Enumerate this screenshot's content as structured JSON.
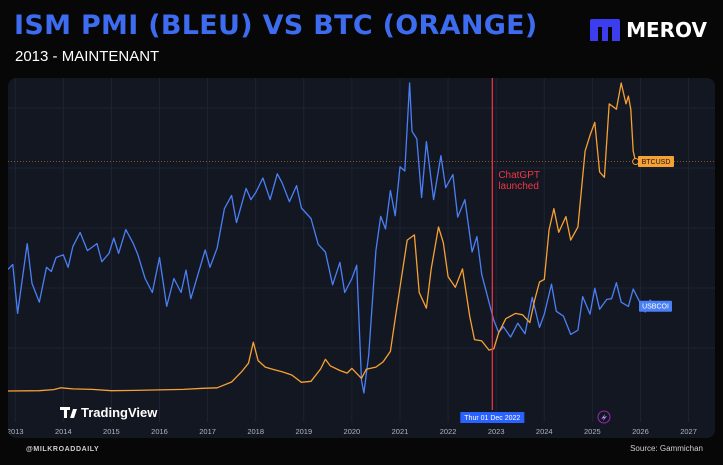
{
  "header": {
    "title": "ISM PMI (BLEU) VS BTC (ORANGE)",
    "subtitle": "2013 - MAINTENANT",
    "brand": "MEROV",
    "brand_icon": "merov-m-logo-icon",
    "brand_color": "#3d3df0"
  },
  "footer": {
    "handle": "@MILKROADDAILY",
    "source": "Source: Gammichan"
  },
  "chart_data": {
    "type": "line",
    "x_ticks": [
      "2013",
      "2014",
      "2015",
      "2016",
      "2017",
      "2018",
      "2019",
      "2020",
      "2021",
      "2022",
      "2023",
      "2024",
      "2025",
      "2026",
      "2027"
    ],
    "xlim": [
      2012.85,
      2027.55
    ],
    "grid": true,
    "watermark": "TradingView",
    "background": "#131722",
    "series": [
      {
        "name": "USBCOI",
        "color": "#4a7ff5",
        "points": [
          [
            2012.85,
            56.5
          ],
          [
            2012.95,
            57.2
          ],
          [
            2013.05,
            50.2
          ],
          [
            2013.25,
            60.2
          ],
          [
            2013.35,
            54.5
          ],
          [
            2013.5,
            51.8
          ],
          [
            2013.65,
            56.8
          ],
          [
            2013.75,
            56.2
          ],
          [
            2013.85,
            58.2
          ],
          [
            2014.0,
            58.6
          ],
          [
            2014.1,
            56.8
          ],
          [
            2014.2,
            59.8
          ],
          [
            2014.35,
            61.8
          ],
          [
            2014.5,
            59.2
          ],
          [
            2014.7,
            60.2
          ],
          [
            2014.8,
            57.6
          ],
          [
            2014.95,
            58.8
          ],
          [
            2015.05,
            61.0
          ],
          [
            2015.15,
            58.8
          ],
          [
            2015.3,
            62.2
          ],
          [
            2015.45,
            60.3
          ],
          [
            2015.55,
            58.6
          ],
          [
            2015.7,
            55.2
          ],
          [
            2015.85,
            53.2
          ],
          [
            2016.0,
            58.2
          ],
          [
            2016.15,
            51.2
          ],
          [
            2016.3,
            55.2
          ],
          [
            2016.45,
            53.2
          ],
          [
            2016.55,
            56.4
          ],
          [
            2016.65,
            52.3
          ],
          [
            2016.8,
            55.8
          ],
          [
            2016.95,
            59.3
          ],
          [
            2017.05,
            56.8
          ],
          [
            2017.2,
            59.6
          ],
          [
            2017.35,
            65.2
          ],
          [
            2017.5,
            67.1
          ],
          [
            2017.6,
            63.2
          ],
          [
            2017.8,
            68.1
          ],
          [
            2017.9,
            66.5
          ],
          [
            2018.0,
            67.5
          ],
          [
            2018.15,
            69.6
          ],
          [
            2018.3,
            66.5
          ],
          [
            2018.45,
            70.2
          ],
          [
            2018.55,
            68.9
          ],
          [
            2018.7,
            66.2
          ],
          [
            2018.85,
            68.5
          ],
          [
            2018.95,
            65.3
          ],
          [
            2019.15,
            63.8
          ],
          [
            2019.3,
            60.1
          ],
          [
            2019.45,
            59.0
          ],
          [
            2019.6,
            54.3
          ],
          [
            2019.75,
            57.5
          ],
          [
            2019.85,
            53.2
          ],
          [
            2020.0,
            55.2
          ],
          [
            2020.1,
            57.1
          ],
          [
            2020.2,
            40.6
          ],
          [
            2020.25,
            38.8
          ],
          [
            2020.35,
            44.2
          ],
          [
            2020.5,
            59.2
          ],
          [
            2020.6,
            64.1
          ],
          [
            2020.7,
            62.3
          ],
          [
            2020.8,
            67.8
          ],
          [
            2020.9,
            64.2
          ],
          [
            2021.0,
            71.2
          ],
          [
            2021.1,
            70.6
          ],
          [
            2021.2,
            83.2
          ],
          [
            2021.25,
            76.3
          ],
          [
            2021.35,
            75.2
          ],
          [
            2021.45,
            66.8
          ],
          [
            2021.55,
            74.8
          ],
          [
            2021.7,
            66.5
          ],
          [
            2021.85,
            72.8
          ],
          [
            2021.95,
            68.2
          ],
          [
            2022.1,
            70.1
          ],
          [
            2022.2,
            64.0
          ],
          [
            2022.35,
            66.5
          ],
          [
            2022.5,
            59.0
          ],
          [
            2022.6,
            61.2
          ],
          [
            2022.7,
            55.8
          ],
          [
            2022.85,
            51.8
          ],
          [
            2022.95,
            49.2
          ],
          [
            2023.05,
            47.5
          ],
          [
            2023.15,
            48.3
          ],
          [
            2023.3,
            46.8
          ],
          [
            2023.45,
            48.8
          ],
          [
            2023.6,
            47.3
          ],
          [
            2023.75,
            52.5
          ],
          [
            2023.9,
            48.2
          ],
          [
            2024.0,
            50.1
          ],
          [
            2024.15,
            54.4
          ],
          [
            2024.25,
            50.5
          ],
          [
            2024.4,
            49.8
          ],
          [
            2024.55,
            47.2
          ],
          [
            2024.7,
            47.8
          ],
          [
            2024.8,
            52.6
          ],
          [
            2024.95,
            50.1
          ],
          [
            2025.05,
            53.8
          ],
          [
            2025.15,
            50.8
          ],
          [
            2025.3,
            52.2
          ],
          [
            2025.4,
            52.3
          ],
          [
            2025.5,
            54.6
          ],
          [
            2025.6,
            51.8
          ],
          [
            2025.75,
            51.2
          ],
          [
            2025.85,
            53.7
          ],
          [
            2026.0,
            51.6
          ],
          [
            2026.1,
            50.4
          ],
          [
            2026.2,
            52.1
          ],
          [
            2026.3,
            51.3
          ]
        ]
      },
      {
        "name": "BTCUSD",
        "color": "#f7a133",
        "points": [
          [
            2012.85,
            0.4
          ],
          [
            2013.5,
            0.5
          ],
          [
            2013.8,
            0.9
          ],
          [
            2013.95,
            1.6
          ],
          [
            2014.2,
            1.2
          ],
          [
            2014.6,
            1.0
          ],
          [
            2015.0,
            0.5
          ],
          [
            2015.5,
            0.6
          ],
          [
            2016.0,
            0.8
          ],
          [
            2016.5,
            1.0
          ],
          [
            2016.9,
            1.4
          ],
          [
            2017.2,
            1.6
          ],
          [
            2017.5,
            3.8
          ],
          [
            2017.7,
            7.6
          ],
          [
            2017.85,
            11.0
          ],
          [
            2017.95,
            19.0
          ],
          [
            2018.05,
            12.0
          ],
          [
            2018.2,
            9.5
          ],
          [
            2018.35,
            8.7
          ],
          [
            2018.55,
            7.7
          ],
          [
            2018.75,
            6.5
          ],
          [
            2018.95,
            3.7
          ],
          [
            2019.15,
            4.1
          ],
          [
            2019.35,
            8.8
          ],
          [
            2019.45,
            12.5
          ],
          [
            2019.55,
            10.0
          ],
          [
            2019.75,
            8.2
          ],
          [
            2019.9,
            7.2
          ],
          [
            2020.0,
            9.0
          ],
          [
            2020.2,
            5.2
          ],
          [
            2020.3,
            8.7
          ],
          [
            2020.5,
            9.5
          ],
          [
            2020.65,
            11.5
          ],
          [
            2020.8,
            15.5
          ],
          [
            2020.9,
            28.0
          ],
          [
            2021.0,
            40.0
          ],
          [
            2021.15,
            58.0
          ],
          [
            2021.3,
            60.0
          ],
          [
            2021.4,
            38.0
          ],
          [
            2021.55,
            32.0
          ],
          [
            2021.65,
            47.0
          ],
          [
            2021.8,
            63.0
          ],
          [
            2021.9,
            57.0
          ],
          [
            2022.0,
            44.0
          ],
          [
            2022.15,
            40.0
          ],
          [
            2022.3,
            47.0
          ],
          [
            2022.45,
            29.0
          ],
          [
            2022.55,
            20.0
          ],
          [
            2022.7,
            19.5
          ],
          [
            2022.85,
            16.0
          ],
          [
            2022.95,
            16.5
          ],
          [
            2023.05,
            22.5
          ],
          [
            2023.2,
            28.0
          ],
          [
            2023.4,
            30.0
          ],
          [
            2023.55,
            29.5
          ],
          [
            2023.7,
            26.5
          ],
          [
            2023.8,
            35.0
          ],
          [
            2023.9,
            42.0
          ],
          [
            2024.0,
            43.0
          ],
          [
            2024.1,
            62.0
          ],
          [
            2024.2,
            70.0
          ],
          [
            2024.3,
            61.0
          ],
          [
            2024.45,
            67.0
          ],
          [
            2024.55,
            58.0
          ],
          [
            2024.7,
            63.0
          ],
          [
            2024.85,
            92.0
          ],
          [
            2024.95,
            98.0
          ],
          [
            2025.05,
            103.0
          ],
          [
            2025.15,
            84.0
          ],
          [
            2025.25,
            82.0
          ],
          [
            2025.35,
            110.0
          ],
          [
            2025.5,
            108.0
          ],
          [
            2025.6,
            118.0
          ],
          [
            2025.7,
            110.0
          ],
          [
            2025.75,
            113.0
          ],
          [
            2025.8,
            108.0
          ],
          [
            2025.85,
            92.0
          ],
          [
            2025.9,
            88.0
          ]
        ]
      }
    ],
    "labels": [
      {
        "text": "BTCUSD",
        "color": "#f7a133",
        "text_color": "#131722"
      },
      {
        "text": "USBCOI",
        "color": "#4a7ff5",
        "text_color": "#ffffff"
      }
    ],
    "annotation": {
      "x": 2022.92,
      "text": [
        "ChatGPT",
        "launched"
      ],
      "date_label": "Thur 01 Dec 2022",
      "color": "#f23645"
    }
  }
}
